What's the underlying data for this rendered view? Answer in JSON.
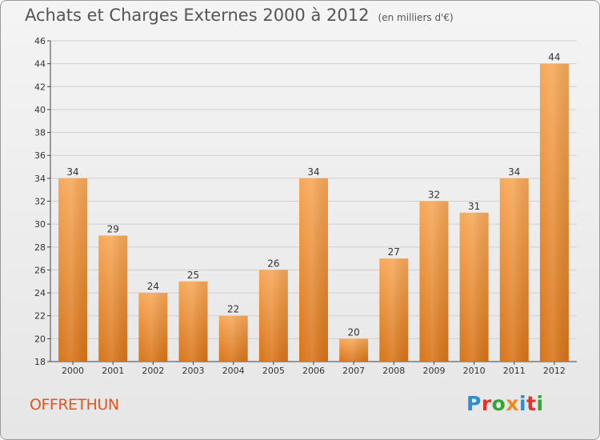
{
  "chart_data": {
    "type": "bar",
    "title": "Achats et Charges Externes 2000 à 2012",
    "unit_label": "(en milliers d'€)",
    "categories": [
      "2000",
      "2001",
      "2002",
      "2003",
      "2004",
      "2005",
      "2006",
      "2007",
      "2008",
      "2009",
      "2010",
      "2011",
      "2012"
    ],
    "values": [
      34,
      29,
      24,
      25,
      22,
      26,
      34,
      20,
      27,
      32,
      31,
      34,
      44
    ],
    "ylim": [
      18,
      46
    ],
    "yticks": [
      18,
      20,
      22,
      24,
      26,
      28,
      30,
      32,
      34,
      36,
      38,
      40,
      42,
      44,
      46
    ],
    "grid": true,
    "colors": {
      "bar_light": "#f7a858",
      "bar_dark": "#d87418",
      "axis": "#444444",
      "grid": "#cfcfcf"
    }
  },
  "footer": {
    "commune": "OFFRETHUN",
    "logo": {
      "letters": [
        "P",
        "r",
        "o",
        "x",
        "i",
        "t",
        "i"
      ],
      "colors": [
        "#2a8fd6",
        "#e2332c",
        "#3aa335",
        "#f08a1c",
        "#2a8fd6",
        "#e2332c",
        "#3aa335"
      ]
    }
  }
}
